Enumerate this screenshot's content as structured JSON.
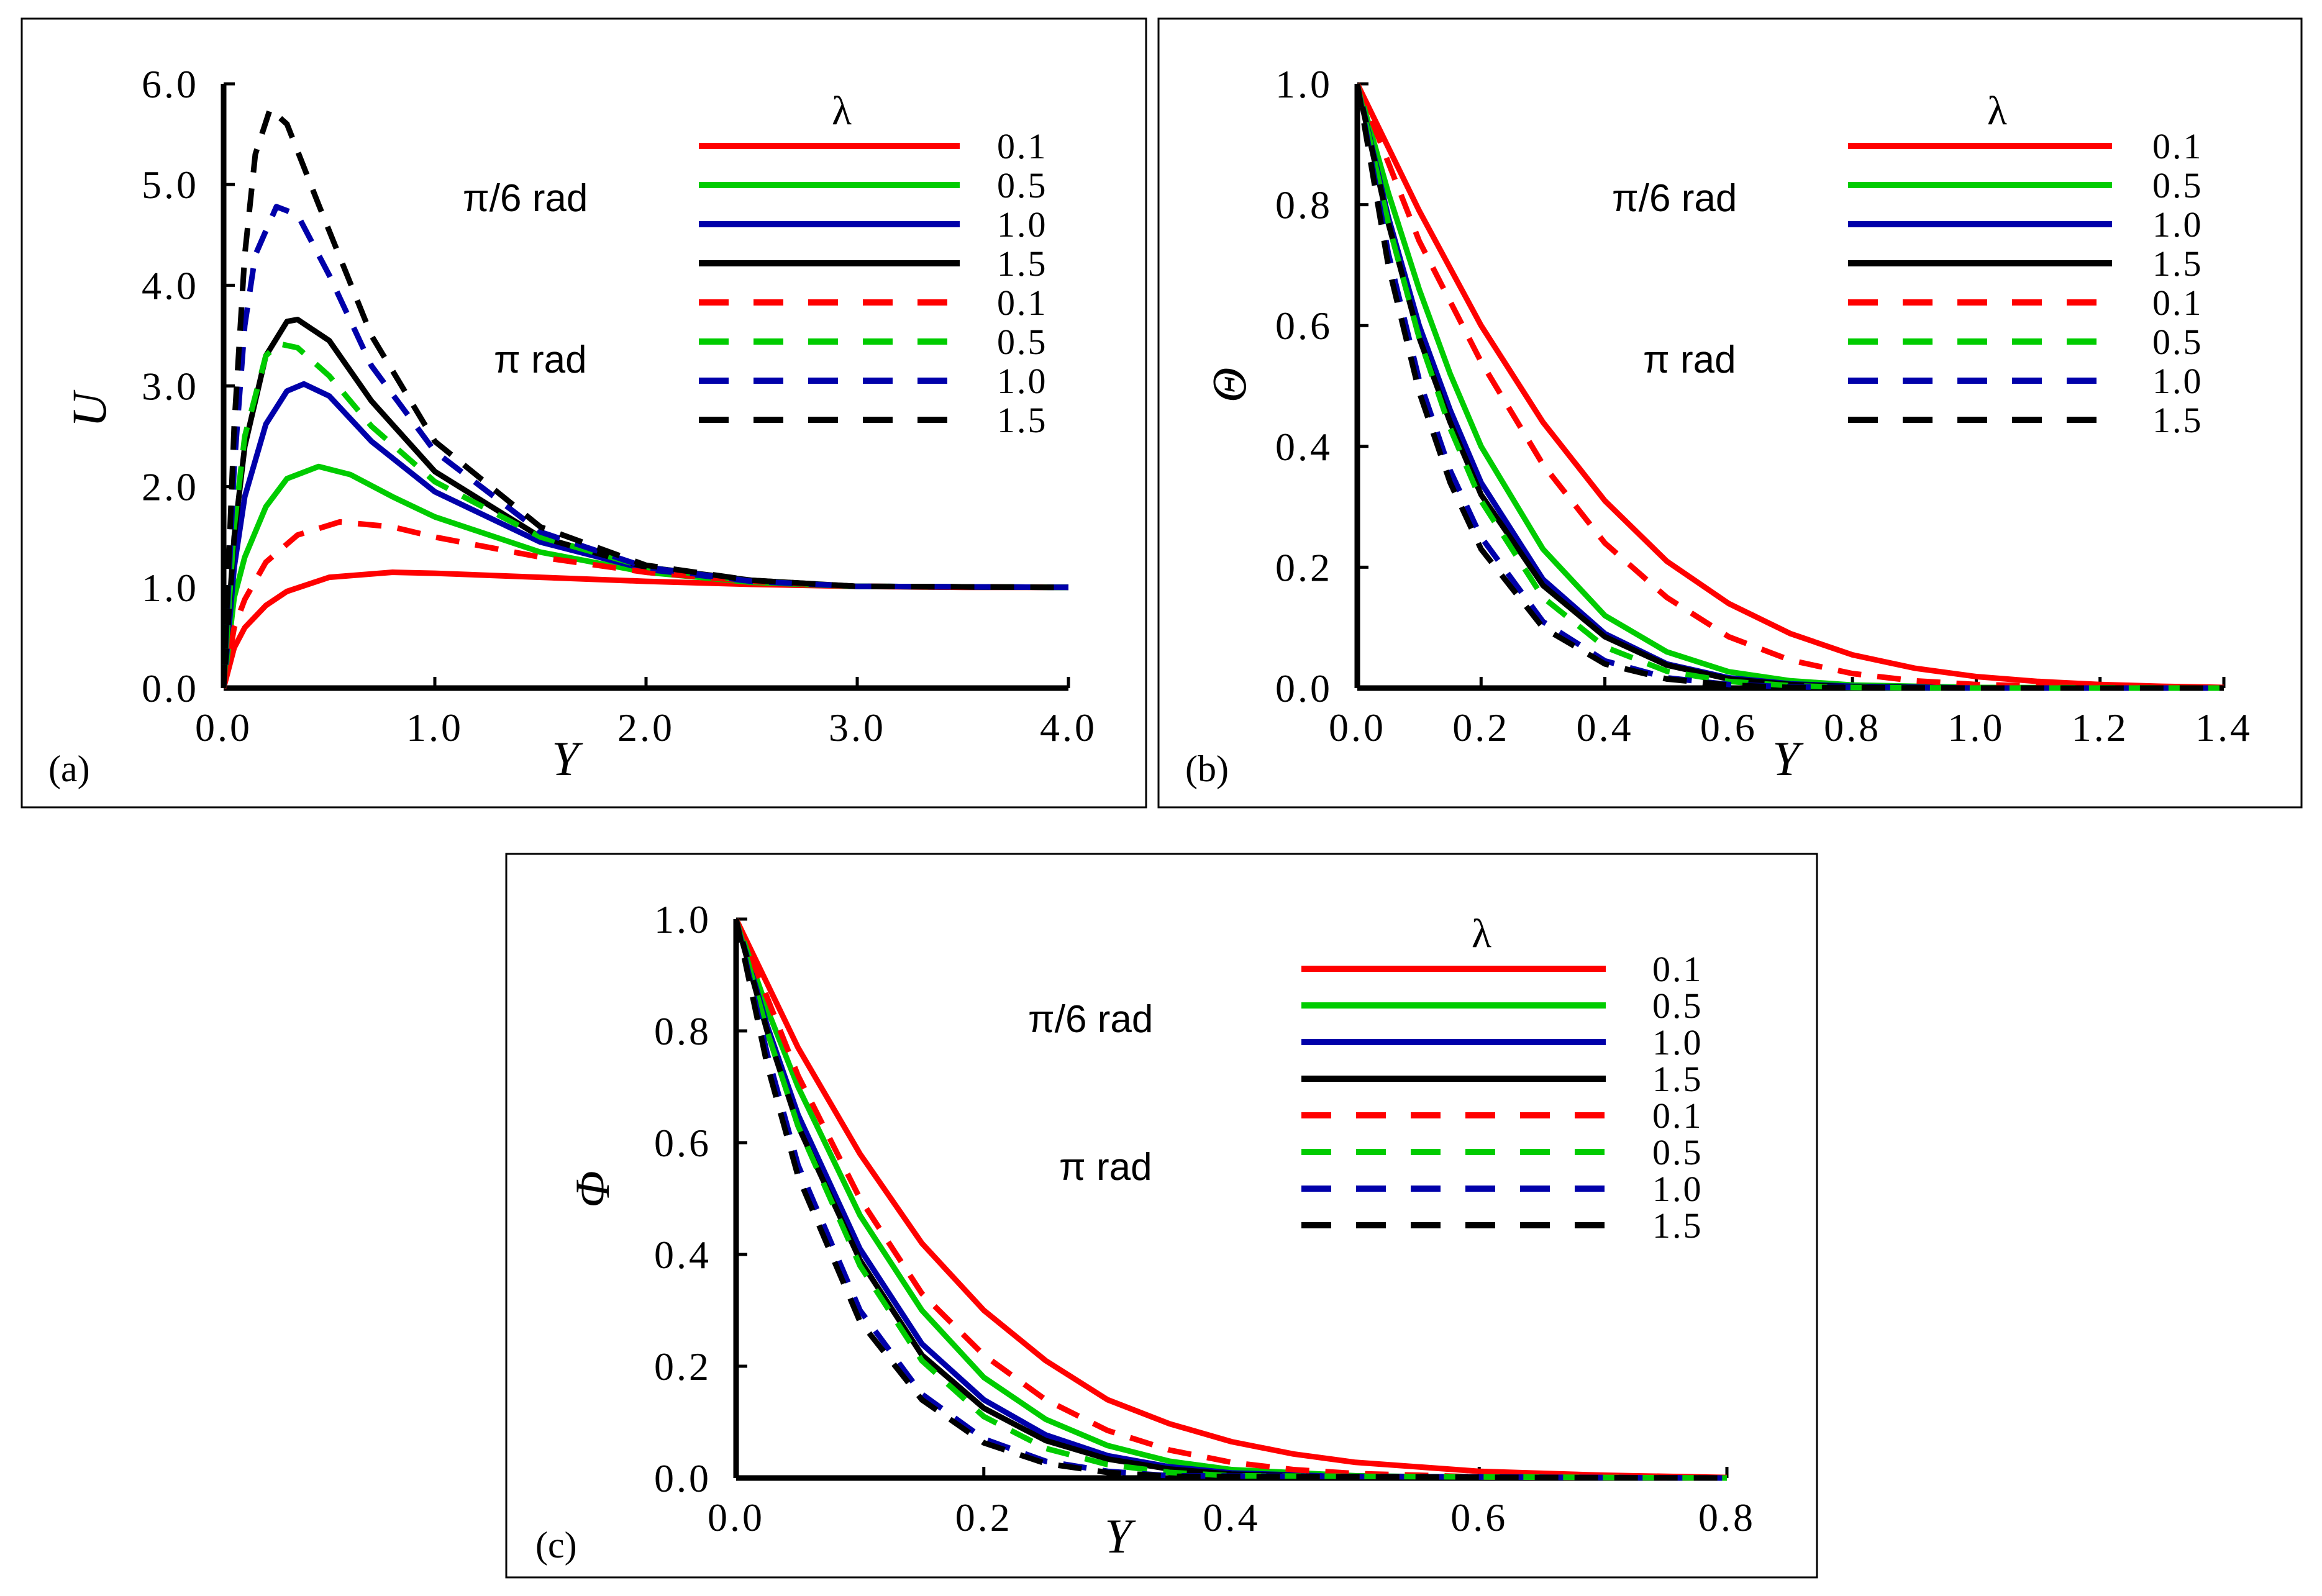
{
  "figure": {
    "legend_title": "λ",
    "legend_labels": [
      "0.1",
      "0.5",
      "1.0",
      "1.5",
      "0.1",
      "0.5",
      "1.0",
      "1.5"
    ],
    "annotations": [
      "π/6 rad",
      "π rad"
    ],
    "series_colors": [
      "#ff0000",
      "#00cc00",
      "#0000aa",
      "#000000"
    ]
  },
  "chart_data": [
    {
      "type": "line",
      "panel_label": "(a)",
      "xlabel": "Y",
      "ylabel": "U",
      "xlim": [
        0,
        4
      ],
      "ylim": [
        0,
        6
      ],
      "xticks": [
        "0.0",
        "1.0",
        "2.0",
        "3.0",
        "4.0"
      ],
      "yticks": [
        "0.0",
        "1.0",
        "2.0",
        "3.0",
        "4.0",
        "5.0",
        "6.0"
      ],
      "series": [
        {
          "name": "0.1",
          "group": "π/6 rad",
          "dash": false,
          "color": "#ff0000",
          "x": [
            0,
            0.05,
            0.1,
            0.2,
            0.3,
            0.5,
            0.8,
            1.0,
            1.5,
            2.0,
            2.5,
            3.0,
            3.5,
            4.0
          ],
          "y": [
            0,
            0.4,
            0.6,
            0.82,
            0.96,
            1.1,
            1.15,
            1.14,
            1.1,
            1.06,
            1.03,
            1.01,
            1.0,
            1.0
          ]
        },
        {
          "name": "0.5",
          "group": "π/6 rad",
          "dash": false,
          "color": "#00cc00",
          "x": [
            0,
            0.05,
            0.1,
            0.2,
            0.3,
            0.45,
            0.6,
            0.8,
            1.0,
            1.5,
            2.0,
            2.5,
            3.0,
            4.0
          ],
          "y": [
            0,
            0.9,
            1.3,
            1.8,
            2.08,
            2.2,
            2.12,
            1.9,
            1.7,
            1.35,
            1.15,
            1.05,
            1.01,
            1.0
          ]
        },
        {
          "name": "1.0",
          "group": "π/6 rad",
          "dash": false,
          "color": "#0000aa",
          "x": [
            0,
            0.05,
            0.1,
            0.2,
            0.3,
            0.38,
            0.5,
            0.7,
            1.0,
            1.5,
            2.0,
            2.5,
            3.0,
            4.0
          ],
          "y": [
            0,
            1.2,
            1.9,
            2.62,
            2.95,
            3.02,
            2.9,
            2.45,
            1.95,
            1.45,
            1.18,
            1.06,
            1.01,
            1.0
          ]
        },
        {
          "name": "1.5",
          "group": "π/6 rad",
          "dash": false,
          "color": "#000000",
          "x": [
            0,
            0.05,
            0.1,
            0.2,
            0.3,
            0.35,
            0.5,
            0.7,
            1.0,
            1.5,
            2.0,
            2.5,
            3.0,
            4.0
          ],
          "y": [
            0,
            1.5,
            2.4,
            3.3,
            3.64,
            3.66,
            3.45,
            2.85,
            2.15,
            1.5,
            1.2,
            1.07,
            1.01,
            1.0
          ]
        },
        {
          "name": "0.1",
          "group": "π rad",
          "dash": true,
          "color": "#ff0000",
          "x": [
            0,
            0.05,
            0.1,
            0.2,
            0.35,
            0.55,
            0.8,
            1.0,
            1.5,
            2.0,
            2.5,
            3.0,
            4.0
          ],
          "y": [
            0,
            0.6,
            0.88,
            1.25,
            1.52,
            1.65,
            1.6,
            1.5,
            1.3,
            1.15,
            1.06,
            1.01,
            1.0
          ]
        },
        {
          "name": "0.5",
          "group": "π rad",
          "dash": true,
          "color": "#00cc00",
          "x": [
            0,
            0.05,
            0.1,
            0.2,
            0.26,
            0.35,
            0.5,
            0.7,
            1.0,
            1.5,
            2.0,
            2.5,
            3.0,
            4.0
          ],
          "y": [
            0,
            1.6,
            2.5,
            3.3,
            3.42,
            3.38,
            3.1,
            2.6,
            2.05,
            1.5,
            1.2,
            1.06,
            1.01,
            1.0
          ]
        },
        {
          "name": "1.0",
          "group": "π rad",
          "dash": true,
          "color": "#0000aa",
          "x": [
            0,
            0.05,
            0.1,
            0.15,
            0.25,
            0.35,
            0.5,
            0.7,
            1.0,
            1.5,
            2.0,
            2.5,
            3.0,
            4.0
          ],
          "y": [
            0,
            2.2,
            3.6,
            4.3,
            4.78,
            4.7,
            4.1,
            3.2,
            2.35,
            1.55,
            1.2,
            1.06,
            1.01,
            1.0
          ]
        },
        {
          "name": "1.5",
          "group": "π rad",
          "dash": true,
          "color": "#000000",
          "x": [
            0,
            0.05,
            0.1,
            0.15,
            0.22,
            0.3,
            0.45,
            0.7,
            1.0,
            1.5,
            2.0,
            2.5,
            3.0,
            4.0
          ],
          "y": [
            0,
            2.6,
            4.3,
            5.3,
            5.75,
            5.6,
            4.8,
            3.5,
            2.45,
            1.6,
            1.22,
            1.07,
            1.01,
            1.0
          ]
        }
      ]
    },
    {
      "type": "line",
      "panel_label": "(b)",
      "xlabel": "Y",
      "ylabel": "Θ",
      "xlim": [
        0,
        1.4
      ],
      "ylim": [
        0,
        1
      ],
      "xticks": [
        "0.0",
        "0.2",
        "0.4",
        "0.6",
        "0.8",
        "1.0",
        "1.2",
        "1.4"
      ],
      "yticks": [
        "0.0",
        "0.2",
        "0.4",
        "0.6",
        "0.8",
        "1.0"
      ],
      "series": [
        {
          "name": "0.1",
          "group": "π/6 rad",
          "dash": false,
          "color": "#ff0000",
          "x": [
            0,
            0.1,
            0.2,
            0.3,
            0.4,
            0.5,
            0.6,
            0.7,
            0.8,
            0.9,
            1.0,
            1.1,
            1.2,
            1.3,
            1.4
          ],
          "y": [
            1,
            0.79,
            0.6,
            0.44,
            0.31,
            0.21,
            0.14,
            0.09,
            0.055,
            0.033,
            0.019,
            0.011,
            0.006,
            0.003,
            0.001
          ]
        },
        {
          "name": "0.5",
          "group": "π/6 rad",
          "dash": false,
          "color": "#00cc00",
          "x": [
            0,
            0.05,
            0.1,
            0.15,
            0.2,
            0.3,
            0.4,
            0.5,
            0.6,
            0.7,
            0.8,
            1.0,
            1.4
          ],
          "y": [
            1,
            0.82,
            0.66,
            0.52,
            0.4,
            0.23,
            0.12,
            0.06,
            0.027,
            0.012,
            0.005,
            0.001,
            0
          ]
        },
        {
          "name": "1.0",
          "group": "π/6 rad",
          "dash": false,
          "color": "#0000aa",
          "x": [
            0,
            0.05,
            0.1,
            0.15,
            0.2,
            0.3,
            0.4,
            0.5,
            0.6,
            0.7,
            0.8,
            1.0,
            1.4
          ],
          "y": [
            1,
            0.78,
            0.6,
            0.46,
            0.34,
            0.18,
            0.09,
            0.04,
            0.017,
            0.007,
            0.003,
            0,
            0
          ]
        },
        {
          "name": "1.5",
          "group": "π/6 rad",
          "dash": false,
          "color": "#000000",
          "x": [
            0,
            0.05,
            0.1,
            0.15,
            0.2,
            0.3,
            0.4,
            0.5,
            0.6,
            0.7,
            0.8,
            1.0,
            1.4
          ],
          "y": [
            1,
            0.77,
            0.58,
            0.44,
            0.32,
            0.17,
            0.085,
            0.038,
            0.015,
            0.006,
            0.002,
            0,
            0
          ]
        },
        {
          "name": "0.1",
          "group": "π rad",
          "dash": true,
          "color": "#ff0000",
          "x": [
            0,
            0.1,
            0.2,
            0.3,
            0.4,
            0.5,
            0.6,
            0.7,
            0.8,
            0.9,
            1.0,
            1.2,
            1.4
          ],
          "y": [
            1,
            0.74,
            0.54,
            0.37,
            0.24,
            0.15,
            0.085,
            0.046,
            0.024,
            0.012,
            0.006,
            0.001,
            0
          ]
        },
        {
          "name": "0.5",
          "group": "π rad",
          "dash": true,
          "color": "#00cc00",
          "x": [
            0,
            0.05,
            0.1,
            0.15,
            0.2,
            0.3,
            0.4,
            0.5,
            0.6,
            0.7,
            0.8,
            1.0,
            1.4
          ],
          "y": [
            1,
            0.77,
            0.58,
            0.43,
            0.31,
            0.15,
            0.068,
            0.028,
            0.011,
            0.004,
            0.001,
            0,
            0
          ]
        },
        {
          "name": "1.0",
          "group": "π rad",
          "dash": true,
          "color": "#0000aa",
          "x": [
            0,
            0.05,
            0.1,
            0.15,
            0.2,
            0.3,
            0.4,
            0.5,
            0.6,
            0.7,
            1.0,
            1.4
          ],
          "y": [
            1,
            0.72,
            0.51,
            0.36,
            0.25,
            0.11,
            0.045,
            0.017,
            0.006,
            0.002,
            0,
            0
          ]
        },
        {
          "name": "1.5",
          "group": "π rad",
          "dash": true,
          "color": "#000000",
          "x": [
            0,
            0.05,
            0.1,
            0.15,
            0.2,
            0.3,
            0.4,
            0.5,
            0.6,
            0.7,
            1.0,
            1.4
          ],
          "y": [
            1,
            0.7,
            0.49,
            0.34,
            0.23,
            0.1,
            0.04,
            0.015,
            0.005,
            0.001,
            0,
            0
          ]
        }
      ]
    },
    {
      "type": "line",
      "panel_label": "(c)",
      "xlabel": "Y",
      "ylabel": "Φ",
      "xlim": [
        0,
        0.8
      ],
      "ylim": [
        0,
        1
      ],
      "xticks": [
        "0.0",
        "0.2",
        "0.4",
        "0.6",
        "0.8"
      ],
      "yticks": [
        "0.0",
        "0.2",
        "0.4",
        "0.6",
        "0.8",
        "1.0"
      ],
      "series": [
        {
          "name": "0.1",
          "group": "π/6 rad",
          "dash": false,
          "color": "#ff0000",
          "x": [
            0,
            0.05,
            0.1,
            0.15,
            0.2,
            0.25,
            0.3,
            0.35,
            0.4,
            0.45,
            0.5,
            0.6,
            0.7,
            0.8
          ],
          "y": [
            1,
            0.77,
            0.58,
            0.42,
            0.3,
            0.21,
            0.14,
            0.097,
            0.065,
            0.043,
            0.028,
            0.012,
            0.005,
            0.001
          ]
        },
        {
          "name": "0.5",
          "group": "π/6 rad",
          "dash": false,
          "color": "#00cc00",
          "x": [
            0,
            0.025,
            0.05,
            0.1,
            0.15,
            0.2,
            0.25,
            0.3,
            0.35,
            0.4,
            0.5,
            0.6,
            0.8
          ],
          "y": [
            1,
            0.84,
            0.7,
            0.47,
            0.3,
            0.18,
            0.105,
            0.058,
            0.03,
            0.015,
            0.004,
            0.001,
            0
          ]
        },
        {
          "name": "1.0",
          "group": "π/6 rad",
          "dash": false,
          "color": "#0000aa",
          "x": [
            0,
            0.025,
            0.05,
            0.1,
            0.15,
            0.2,
            0.25,
            0.3,
            0.35,
            0.4,
            0.5,
            0.8
          ],
          "y": [
            1,
            0.81,
            0.65,
            0.41,
            0.24,
            0.14,
            0.077,
            0.04,
            0.02,
            0.009,
            0.002,
            0
          ]
        },
        {
          "name": "1.5",
          "group": "π/6 rad",
          "dash": false,
          "color": "#000000",
          "x": [
            0,
            0.025,
            0.05,
            0.1,
            0.15,
            0.2,
            0.25,
            0.3,
            0.35,
            0.4,
            0.5,
            0.8
          ],
          "y": [
            1,
            0.8,
            0.63,
            0.39,
            0.22,
            0.125,
            0.067,
            0.034,
            0.016,
            0.007,
            0.001,
            0
          ]
        },
        {
          "name": "0.1",
          "group": "π rad",
          "dash": true,
          "color": "#ff0000",
          "x": [
            0,
            0.05,
            0.1,
            0.15,
            0.2,
            0.25,
            0.3,
            0.35,
            0.4,
            0.45,
            0.5,
            0.6,
            0.8
          ],
          "y": [
            1,
            0.72,
            0.5,
            0.33,
            0.22,
            0.14,
            0.085,
            0.05,
            0.028,
            0.015,
            0.008,
            0.002,
            0
          ]
        },
        {
          "name": "0.5",
          "group": "π rad",
          "dash": true,
          "color": "#00cc00",
          "x": [
            0,
            0.025,
            0.05,
            0.1,
            0.15,
            0.2,
            0.25,
            0.3,
            0.35,
            0.4,
            0.8
          ],
          "y": [
            1,
            0.8,
            0.63,
            0.38,
            0.21,
            0.11,
            0.053,
            0.024,
            0.01,
            0.004,
            0
          ]
        },
        {
          "name": "1.0",
          "group": "π rad",
          "dash": true,
          "color": "#0000aa",
          "x": [
            0,
            0.025,
            0.05,
            0.1,
            0.15,
            0.2,
            0.25,
            0.3,
            0.35,
            0.8
          ],
          "y": [
            1,
            0.76,
            0.56,
            0.3,
            0.15,
            0.07,
            0.03,
            0.012,
            0.004,
            0
          ]
        },
        {
          "name": "1.5",
          "group": "π rad",
          "dash": true,
          "color": "#000000",
          "x": [
            0,
            0.025,
            0.05,
            0.1,
            0.15,
            0.2,
            0.25,
            0.3,
            0.35,
            0.8
          ],
          "y": [
            1,
            0.74,
            0.54,
            0.28,
            0.14,
            0.063,
            0.026,
            0.01,
            0.003,
            0
          ]
        }
      ]
    }
  ]
}
